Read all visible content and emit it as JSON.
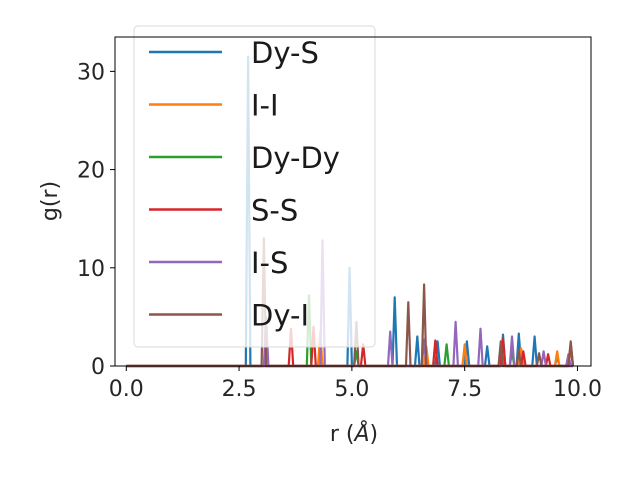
{
  "chart_data": {
    "type": "line",
    "xlabel": "r (",
    "xlabel_symbol": "Å",
    "xlabel_close": ")",
    "ylabel": "g(r)",
    "xlim": [
      -0.25,
      10.3
    ],
    "ylim": [
      0,
      33.5
    ],
    "xticks": [
      0.0,
      2.5,
      5.0,
      7.5,
      10.0
    ],
    "xtick_labels": [
      "0.0",
      "2.5",
      "5.0",
      "7.5",
      "10.0"
    ],
    "yticks": [
      0,
      10,
      20,
      30
    ],
    "ytick_labels": [
      "0",
      "10",
      "20",
      "30"
    ],
    "grid": false,
    "legend_position": "upper-left",
    "series": [
      {
        "name": "Dy-S",
        "color": "#1f77b4",
        "peaks": [
          [
            2.7,
            31.5
          ],
          [
            4.95,
            10.0
          ],
          [
            5.95,
            7.0
          ],
          [
            6.45,
            3.0
          ],
          [
            6.9,
            2.5
          ],
          [
            7.55,
            2.5
          ],
          [
            8.0,
            2.0
          ],
          [
            8.35,
            3.2
          ],
          [
            8.7,
            3.3
          ],
          [
            9.05,
            3.0
          ],
          [
            9.55,
            1.0
          ]
        ]
      },
      {
        "name": "I-I",
        "color": "#ff7f0e",
        "peaks": [
          [
            4.3,
            3.5
          ],
          [
            6.65,
            2.0
          ],
          [
            7.5,
            2.2
          ],
          [
            8.35,
            1.5
          ],
          [
            8.75,
            1.8
          ],
          [
            9.55,
            1.5
          ],
          [
            9.85,
            1.8
          ]
        ]
      },
      {
        "name": "Dy-Dy",
        "color": "#2ca02c",
        "peaks": [
          [
            4.05,
            7.2
          ],
          [
            5.1,
            1.5
          ],
          [
            7.1,
            2.2
          ],
          [
            8.55,
            1.5
          ]
        ]
      },
      {
        "name": "S-S",
        "color": "#d62728",
        "peaks": [
          [
            3.65,
            3.8
          ],
          [
            4.15,
            4.0
          ],
          [
            5.25,
            2.2
          ],
          [
            6.85,
            2.6
          ],
          [
            8.35,
            2.8
          ],
          [
            8.8,
            1.5
          ],
          [
            9.35,
            1.2
          ],
          [
            9.85,
            2.3
          ]
        ]
      },
      {
        "name": "I-S",
        "color": "#9467bd",
        "peaks": [
          [
            3.1,
            5.0
          ],
          [
            4.35,
            12.8
          ],
          [
            5.85,
            3.5
          ],
          [
            6.6,
            2.7
          ],
          [
            7.3,
            4.5
          ],
          [
            7.85,
            3.8
          ],
          [
            8.55,
            3.0
          ],
          [
            9.25,
            1.5
          ],
          [
            9.8,
            1.2
          ]
        ]
      },
      {
        "name": "Dy-I",
        "color": "#8c564b",
        "peaks": [
          [
            3.05,
            13.0
          ],
          [
            5.1,
            4.5
          ],
          [
            6.25,
            6.5
          ],
          [
            6.6,
            8.3
          ],
          [
            8.3,
            2.5
          ],
          [
            8.7,
            1.5
          ],
          [
            9.15,
            1.3
          ],
          [
            9.85,
            2.5
          ]
        ]
      }
    ]
  }
}
